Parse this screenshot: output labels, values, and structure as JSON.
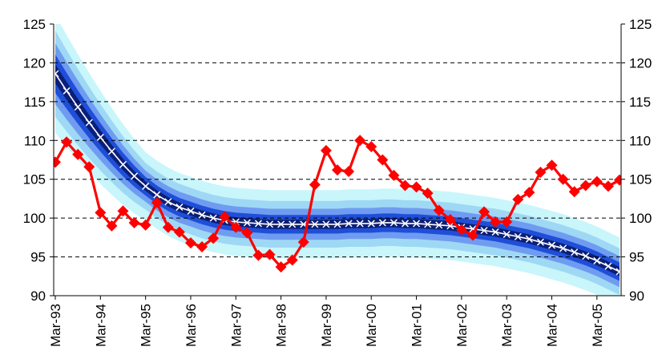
{
  "chart_data": {
    "type": "line",
    "title": "",
    "xlabel": "",
    "ylabel": "",
    "ylim": [
      90,
      125
    ],
    "yticks": [
      90,
      95,
      100,
      105,
      110,
      115,
      120,
      125
    ],
    "y_tick_labels_left": [
      "90",
      "95",
      "100",
      "105",
      "110",
      "115",
      "120",
      "125"
    ],
    "y_tick_labels_right": [
      "90",
      "95",
      "100",
      "105",
      "110",
      "115",
      "120",
      "125"
    ],
    "x_tick_labels": [
      "Mar-93",
      "Mar-94",
      "Mar-95",
      "Mar-96",
      "Mar-97",
      "Mar-98",
      "Mar-99",
      "Mar-00",
      "Mar-01",
      "Mar-02",
      "Mar-03",
      "Mar-04",
      "Mar-05"
    ],
    "grid": "horizontal dashed",
    "legend": "none",
    "colors": {
      "actual": "#ff0000",
      "trend_line": "#ffffff",
      "band_core": "#0b1f78",
      "band_inner": "#1f4fd8",
      "band_middle": "#6f9cf0",
      "band_outer": "#9fd8f5",
      "band_outermost": "#c8f6fb"
    },
    "x_quarters": [
      0,
      1,
      2,
      3,
      4,
      5,
      6,
      7,
      8,
      9,
      10,
      11,
      12,
      13,
      14,
      15,
      16,
      17,
      18,
      19,
      20,
      21,
      22,
      23,
      24,
      25,
      26,
      27,
      28,
      29,
      30,
      31,
      32,
      33,
      34,
      35,
      36,
      37,
      38,
      39,
      40,
      41,
      42,
      43,
      44,
      45,
      46,
      47,
      48,
      49,
      50
    ],
    "series": [
      {
        "values": [
          107.2,
          109.8,
          108.2,
          106.6,
          100.7,
          99.0,
          100.9,
          99.4,
          99.1,
          102.0,
          98.8,
          98.2,
          96.8,
          96.3,
          97.4,
          100.2,
          98.8,
          98.1,
          95.2,
          95.3,
          93.7,
          94.6,
          96.9,
          104.3,
          108.7,
          106.2,
          106.0,
          110.0,
          109.2,
          107.5,
          105.5,
          104.2,
          104.0,
          103.2,
          101.0,
          99.8,
          98.5,
          97.8,
          100.8,
          99.5,
          99.5,
          102.4,
          103.3,
          105.9,
          106.8,
          105.0,
          103.4,
          104.2,
          104.7,
          104.1,
          104.9
        ]
      },
      {
        "values": [
          118.6,
          116.4,
          114.3,
          112.3,
          110.4,
          108.6,
          106.9,
          105.4,
          104.1,
          103.0,
          102.1,
          101.4,
          100.9,
          100.4,
          100.0,
          99.7,
          99.5,
          99.4,
          99.3,
          99.2,
          99.2,
          99.2,
          99.2,
          99.2,
          99.2,
          99.2,
          99.3,
          99.3,
          99.3,
          99.4,
          99.4,
          99.3,
          99.3,
          99.2,
          99.1,
          99.0,
          98.8,
          98.6,
          98.4,
          98.2,
          97.9,
          97.6,
          97.3,
          96.9,
          96.5,
          96.1,
          95.6,
          95.1,
          94.5,
          93.8,
          93.1
        ]
      }
    ],
    "fan_band_half_widths": [
      0.6,
      1.2,
      2.0,
      3.0,
      4.4
    ]
  }
}
